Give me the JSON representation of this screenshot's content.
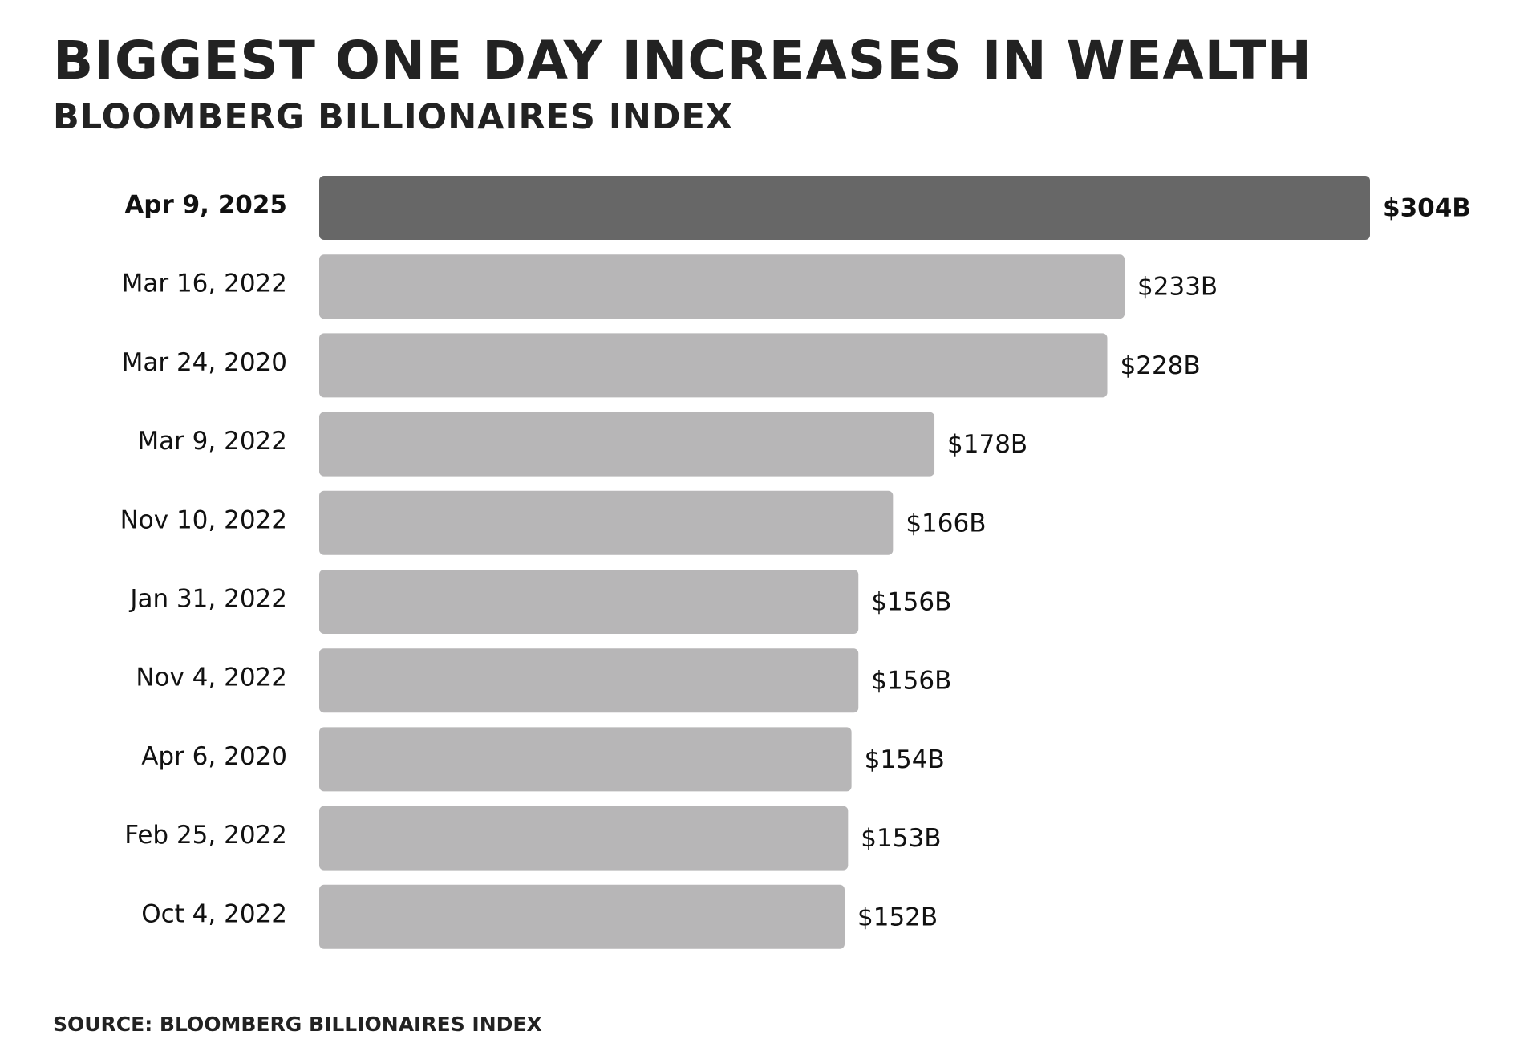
{
  "title": "BIGGEST ONE DAY INCREASES IN WEALTH",
  "subtitle": "BLOOMBERG BILLIONAIRES INDEX",
  "source": "SOURCE: BLOOMBERG BILLIONAIRES INDEX",
  "colors": {
    "highlight_bar": "#676767",
    "bar": "#b7b6b7",
    "text": "#111111",
    "background": "#ffffff"
  },
  "chart_data": {
    "type": "bar",
    "orientation": "horizontal",
    "title": "BIGGEST ONE DAY INCREASES IN WEALTH",
    "subtitle": "BLOOMBERG BILLIONAIRES INDEX",
    "categories": [
      "Apr 9, 2025",
      "Mar 16, 2022",
      "Mar 24, 2020",
      "Mar 9, 2022",
      "Nov 10, 2022",
      "Jan 31, 2022",
      "Nov 4, 2022",
      "Apr 6, 2020",
      "Feb 25, 2022",
      "Oct 4, 2022"
    ],
    "values": [
      304,
      233,
      228,
      178,
      166,
      156,
      156,
      154,
      153,
      152
    ],
    "value_labels": [
      "$304B",
      "$233B",
      "$228B",
      "$178B",
      "$166B",
      "$156B",
      "$156B",
      "$154B",
      "$153B",
      "$152B"
    ],
    "highlight_index": 0,
    "xlim": [
      0,
      304
    ],
    "grid": false,
    "legend": "none"
  }
}
